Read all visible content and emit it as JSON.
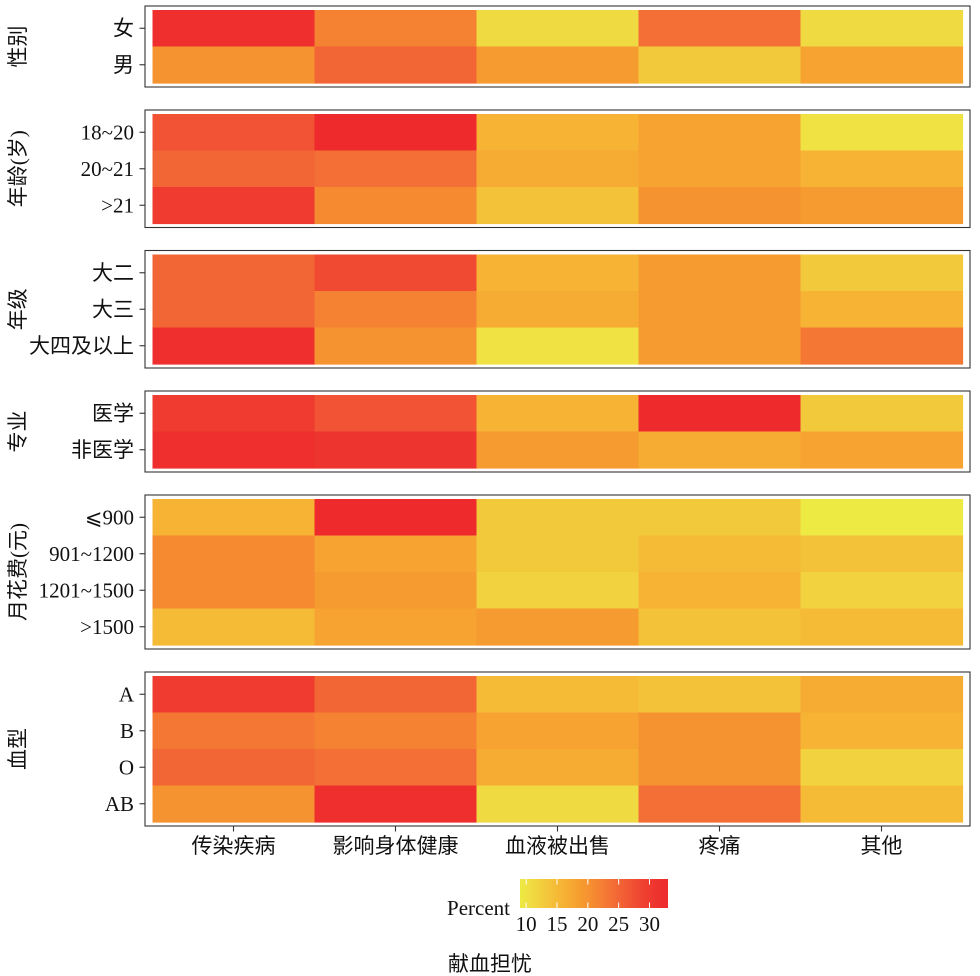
{
  "chart_data": {
    "type": "heatmap",
    "xlabel": "献血担忧",
    "x": [
      "传染疾病",
      "影响身体健康",
      "血液被出售",
      "疼痛",
      "其他"
    ],
    "facets": [
      {
        "label": "性别",
        "rows": [
          {
            "name": "女",
            "values": [
              32,
              22,
              11,
              24,
              11
            ]
          },
          {
            "name": "男",
            "values": [
              20,
              25,
              19,
              13,
              18
            ]
          }
        ]
      },
      {
        "label": "年龄(岁)",
        "rows": [
          {
            "name": "18~20",
            "values": [
              27,
              33,
              16,
              18,
              10
            ]
          },
          {
            "name": "20~21",
            "values": [
              25,
              24,
              17,
              18,
              16
            ]
          },
          {
            "name": ">21",
            "values": [
              30,
              21,
              14,
              20,
              19
            ]
          }
        ]
      },
      {
        "label": "年级",
        "rows": [
          {
            "name": "大二",
            "values": [
              25,
              28,
              16,
              19,
              13
            ]
          },
          {
            "name": "大三",
            "values": [
              25,
              22,
              17,
              19,
              16
            ]
          },
          {
            "name": "大四及以上",
            "values": [
              32,
              20,
              10,
              19,
              23
            ]
          }
        ]
      },
      {
        "label": "专业",
        "rows": [
          {
            "name": "医学",
            "values": [
              30,
              27,
              16,
              33,
              13
            ]
          },
          {
            "name": "非医学",
            "values": [
              32,
              31,
              19,
              17,
              18
            ]
          }
        ]
      },
      {
        "label": "月花费(元)",
        "rows": [
          {
            "name": "⩽900",
            "values": [
              16,
              33,
              13,
              13,
              9
            ]
          },
          {
            "name": "901~1200",
            "values": [
              21,
              18,
              13,
              15,
              14
            ]
          },
          {
            "name": "1201~1500",
            "values": [
              21,
              19,
              12,
              16,
              12
            ]
          },
          {
            "name": ">1500",
            "values": [
              15,
              18,
              19,
              14,
              15
            ]
          }
        ]
      },
      {
        "label": "血型",
        "rows": [
          {
            "name": "A",
            "values": [
              30,
              25,
              15,
              14,
              17
            ]
          },
          {
            "name": "B",
            "values": [
              23,
              22,
              18,
              20,
              16
            ]
          },
          {
            "name": "O",
            "values": [
              25,
              24,
              17,
              20,
              12
            ]
          },
          {
            "name": "AB",
            "values": [
              20,
              32,
              11,
              24,
              15
            ]
          }
        ]
      }
    ],
    "legend": {
      "title": "Percent",
      "position": "bottom",
      "ticks": [
        10,
        15,
        20,
        25,
        30
      ],
      "limits": [
        9,
        33
      ]
    },
    "color_scale": {
      "stops": [
        {
          "value": 9,
          "color": "#EDEA43"
        },
        {
          "value": 11,
          "color": "#F0DA41"
        },
        {
          "value": 13,
          "color": "#F3C93C"
        },
        {
          "value": 15,
          "color": "#F5BA36"
        },
        {
          "value": 17,
          "color": "#F6AB32"
        },
        {
          "value": 19,
          "color": "#F69B30"
        },
        {
          "value": 21,
          "color": "#F58A31"
        },
        {
          "value": 23,
          "color": "#F47834"
        },
        {
          "value": 25,
          "color": "#F26535"
        },
        {
          "value": 27,
          "color": "#F15334"
        },
        {
          "value": 29,
          "color": "#EF4131"
        },
        {
          "value": 31,
          "color": "#EE342F"
        },
        {
          "value": 33,
          "color": "#EE2A2D"
        }
      ]
    },
    "grid": false
  }
}
